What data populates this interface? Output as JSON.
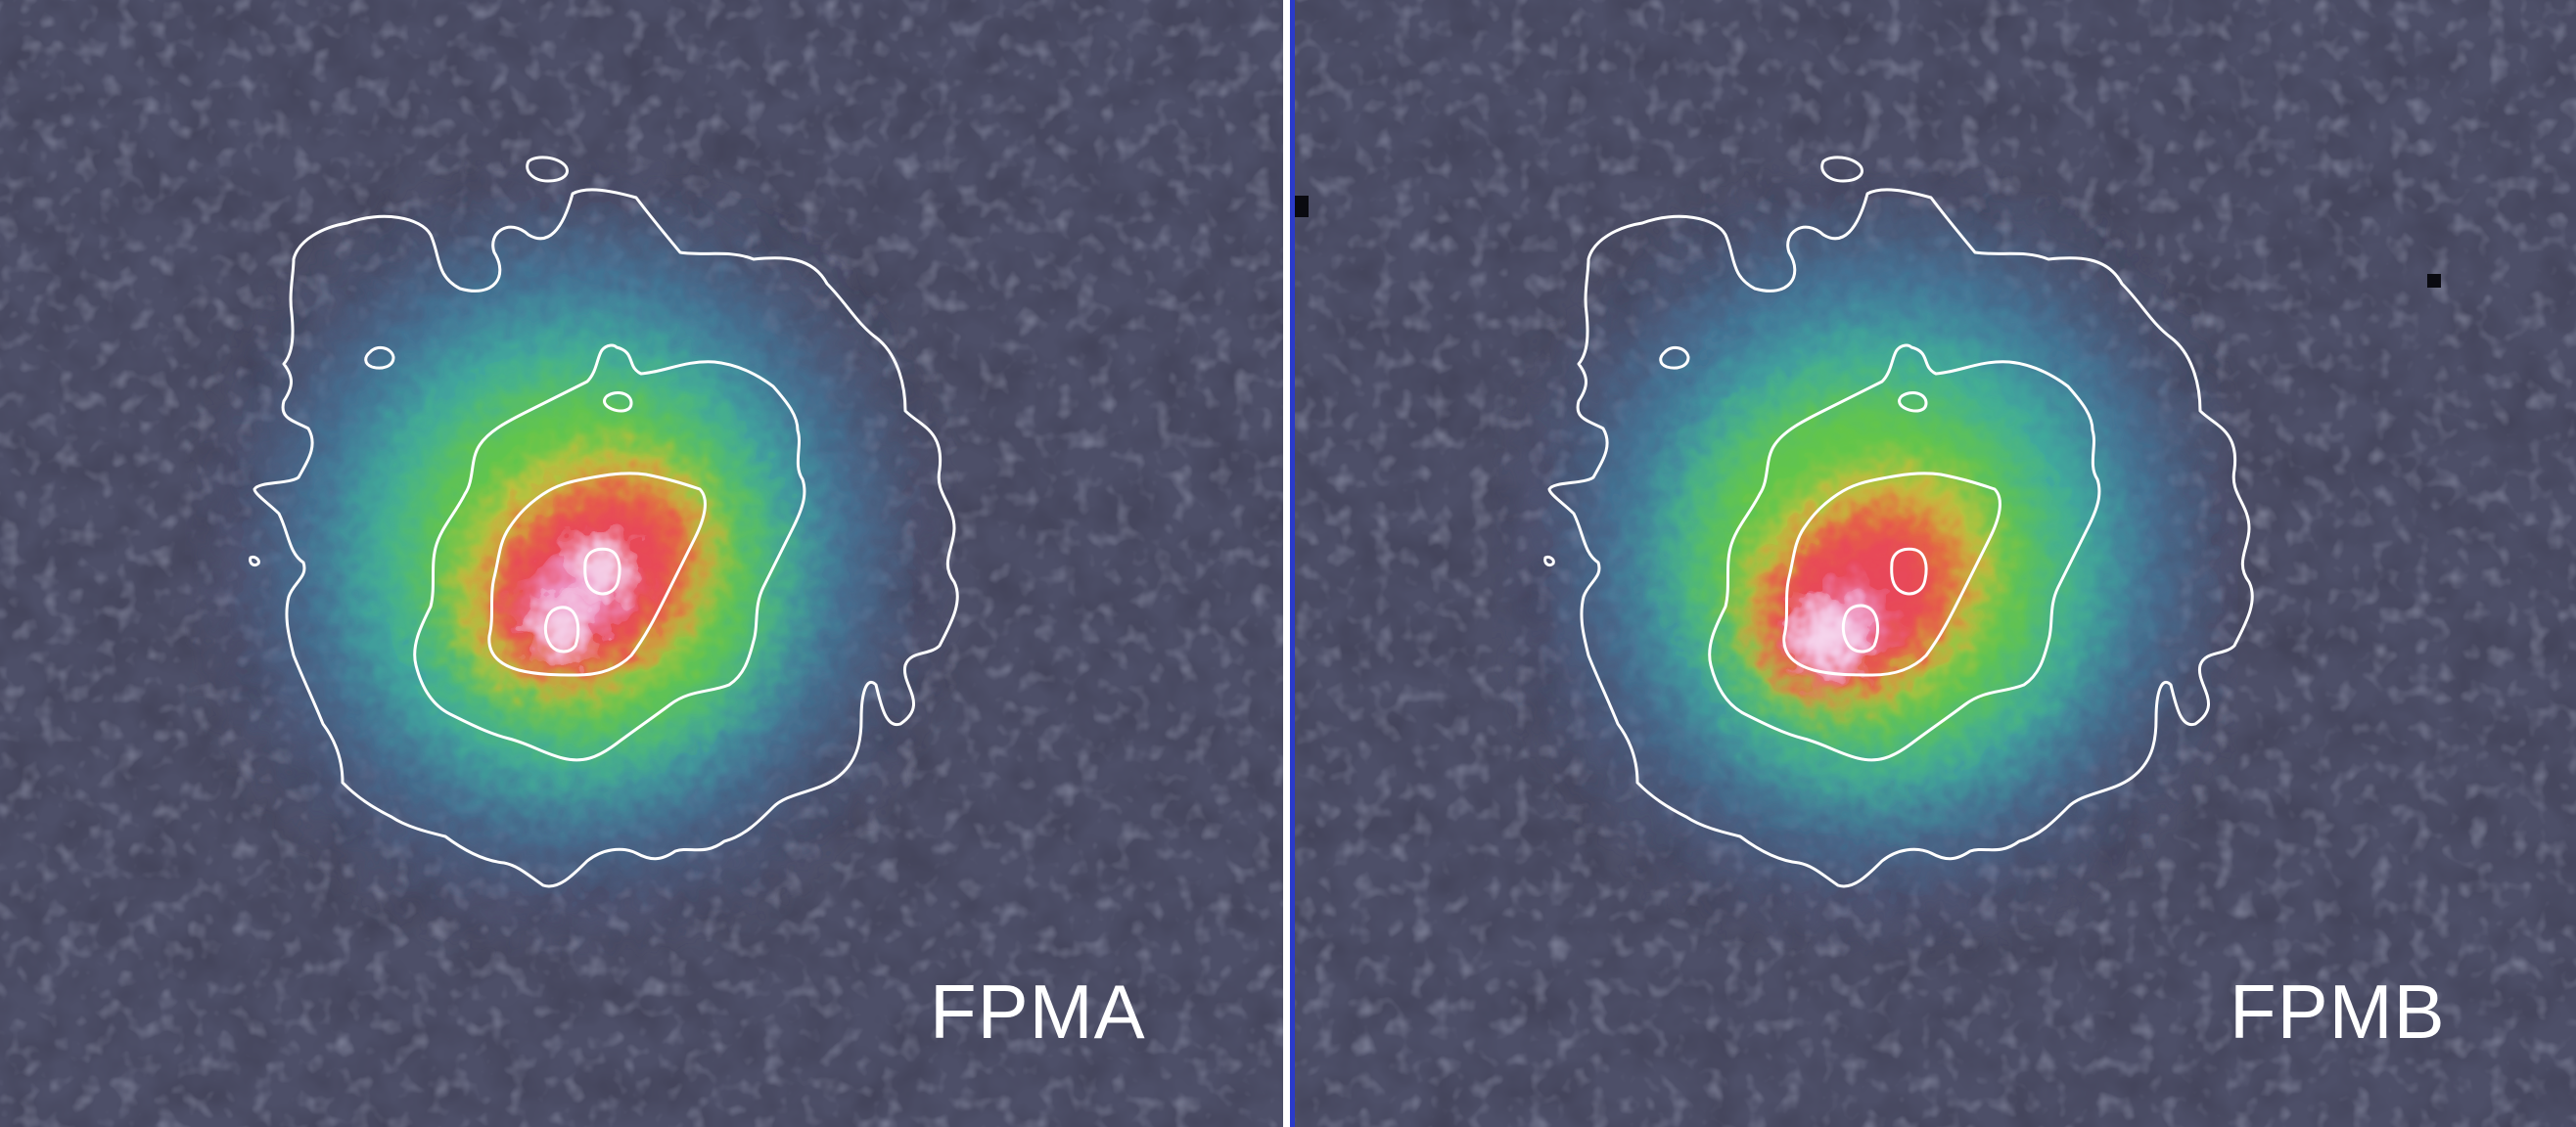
{
  "panels": [
    {
      "id": "a",
      "label": "FPMA",
      "core": "double"
    },
    {
      "id": "b",
      "label": "FPMB",
      "core": "single"
    }
  ],
  "colors": {
    "background": "#4d4f68",
    "contour": "#ffffff",
    "divider_white": "#ffffff",
    "divider_blue": "#2a3acb",
    "colormap": [
      "#4d5a85",
      "#3f8aa8",
      "#3fb79a",
      "#63c64a",
      "#c6c13e",
      "#e5663f",
      "#e8465a",
      "#ee93c6",
      "#f6d9ef",
      "#ffffff"
    ]
  }
}
